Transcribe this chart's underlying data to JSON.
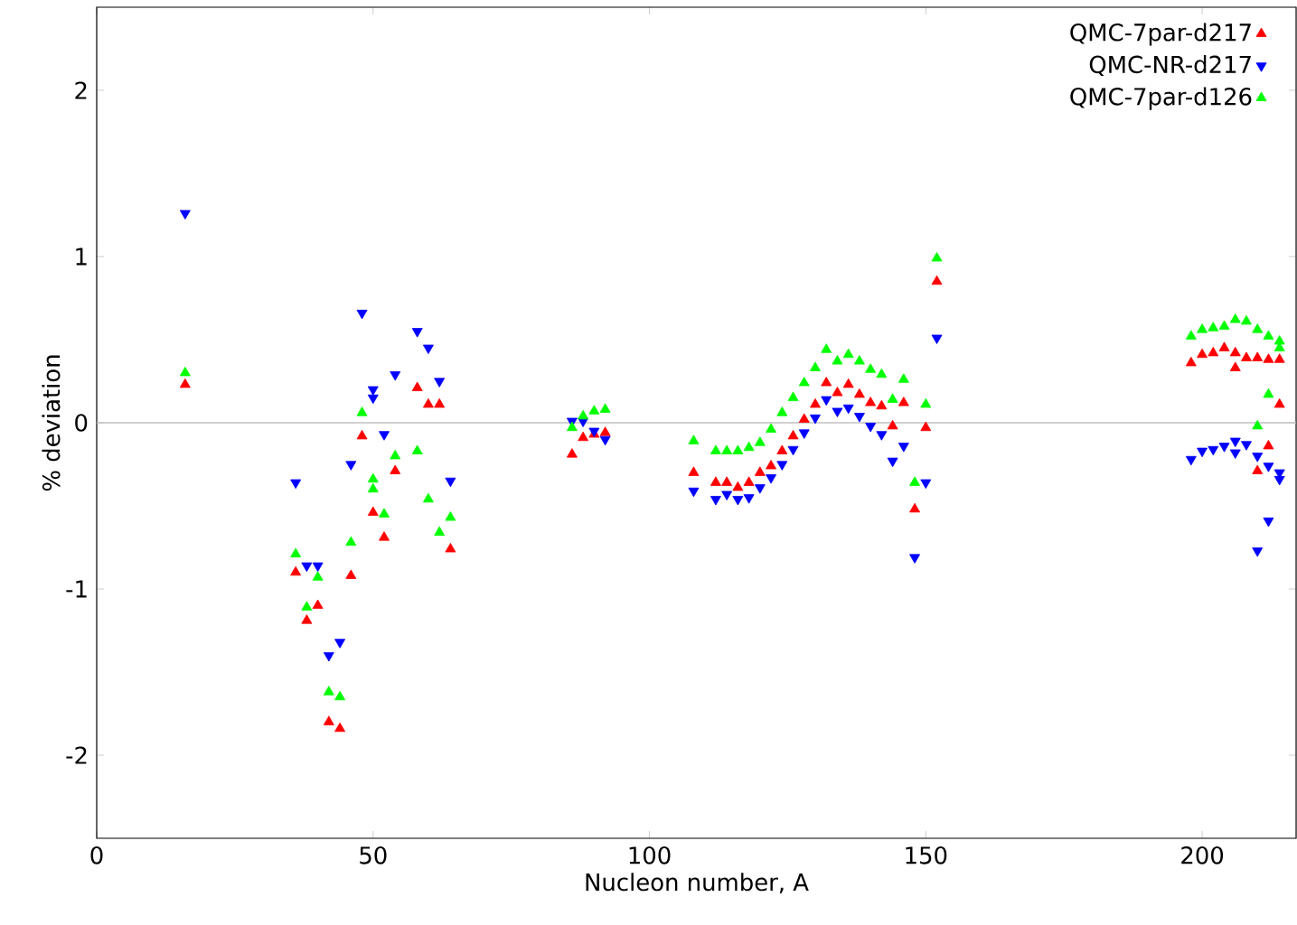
{
  "chart_data": {
    "type": "scatter",
    "xlabel": "Nucleon number, A",
    "ylabel": "% deviation",
    "xlim": [
      0,
      217
    ],
    "ylim": [
      -2.5,
      2.5
    ],
    "xticks": [
      0,
      50,
      100,
      150,
      200
    ],
    "yticks": [
      -2,
      -1,
      0,
      1,
      2
    ],
    "grid": false,
    "legend": "top right",
    "ref_lines": [
      {
        "axis": "y",
        "value": 0,
        "color": "#c0c0c0"
      }
    ],
    "series": [
      {
        "name": "QMC-7par-d217",
        "color": "#ff0000",
        "marker": "triangle",
        "x": [
          16,
          36,
          38,
          40,
          42,
          44,
          46,
          48,
          50,
          52,
          54,
          58,
          60,
          62,
          64,
          86,
          88,
          90,
          92,
          108,
          112,
          114,
          116,
          118,
          120,
          122,
          124,
          126,
          128,
          130,
          132,
          134,
          136,
          138,
          140,
          142,
          144,
          146,
          148,
          150,
          152,
          198,
          200,
          202,
          204,
          206,
          206,
          208,
          210,
          210,
          212,
          212,
          214,
          214
        ],
        "values": [
          0.23,
          -0.9,
          -1.19,
          -1.1,
          -1.8,
          -1.84,
          -0.92,
          -0.08,
          -0.54,
          -0.69,
          -0.29,
          0.21,
          0.11,
          0.11,
          -0.76,
          -0.19,
          -0.09,
          -0.07,
          -0.06,
          -0.3,
          -0.36,
          -0.36,
          -0.39,
          -0.36,
          -0.3,
          -0.26,
          -0.17,
          -0.08,
          0.02,
          0.11,
          0.24,
          0.18,
          0.23,
          0.17,
          0.12,
          0.1,
          -0.02,
          0.12,
          -0.52,
          -0.03,
          0.85,
          0.36,
          0.41,
          0.42,
          0.45,
          0.42,
          0.33,
          0.39,
          0.39,
          -0.29,
          0.38,
          -0.14,
          0.38,
          0.11
        ]
      },
      {
        "name": "QMC-NR-d217",
        "color": "#0000ff",
        "marker": "triangle-down",
        "x": [
          16,
          36,
          38,
          40,
          42,
          44,
          46,
          48,
          50,
          50,
          52,
          54,
          58,
          60,
          62,
          64,
          86,
          88,
          90,
          92,
          108,
          112,
          114,
          116,
          118,
          120,
          122,
          124,
          126,
          128,
          130,
          132,
          134,
          136,
          138,
          140,
          142,
          144,
          146,
          148,
          150,
          152,
          198,
          200,
          202,
          204,
          206,
          206,
          208,
          210,
          210,
          212,
          212,
          214,
          214
        ],
        "values": [
          1.26,
          -0.36,
          -0.86,
          -0.86,
          -1.4,
          -1.32,
          -0.25,
          0.66,
          0.2,
          0.15,
          -0.07,
          0.29,
          0.55,
          0.45,
          0.25,
          -0.35,
          0.01,
          0.01,
          -0.05,
          -0.1,
          -0.41,
          -0.46,
          -0.43,
          -0.46,
          -0.45,
          -0.39,
          -0.33,
          -0.25,
          -0.16,
          -0.06,
          0.03,
          0.14,
          0.07,
          0.09,
          0.04,
          -0.02,
          -0.07,
          -0.23,
          -0.14,
          -0.81,
          -0.36,
          0.51,
          -0.22,
          -0.17,
          -0.16,
          -0.14,
          -0.11,
          -0.18,
          -0.13,
          -0.2,
          -0.77,
          -0.26,
          -0.59,
          -0.3,
          -0.34
        ]
      },
      {
        "name": "QMC-7par-d126",
        "color": "#00ff00",
        "marker": "triangle",
        "x": [
          16,
          36,
          38,
          40,
          42,
          44,
          46,
          48,
          50,
          50,
          52,
          54,
          58,
          60,
          62,
          64,
          86,
          88,
          90,
          92,
          108,
          112,
          114,
          116,
          118,
          120,
          122,
          124,
          126,
          128,
          130,
          132,
          134,
          136,
          138,
          140,
          142,
          144,
          146,
          148,
          150,
          152,
          198,
          200,
          202,
          204,
          206,
          208,
          210,
          210,
          212,
          212,
          214,
          214
        ],
        "values": [
          0.3,
          -0.79,
          -1.11,
          -0.93,
          -1.62,
          -1.65,
          -0.72,
          0.06,
          -0.34,
          -0.4,
          -0.55,
          -0.2,
          -0.17,
          -0.46,
          -0.66,
          -0.57,
          -0.03,
          0.04,
          0.07,
          0.08,
          -0.11,
          -0.17,
          -0.17,
          -0.17,
          -0.15,
          -0.12,
          -0.04,
          0.06,
          0.15,
          0.24,
          0.33,
          0.44,
          0.37,
          0.41,
          0.37,
          0.32,
          0.29,
          0.14,
          0.26,
          -0.36,
          0.11,
          0.99,
          0.52,
          0.56,
          0.57,
          0.58,
          0.62,
          0.61,
          0.56,
          -0.02,
          0.52,
          0.17,
          0.49,
          0.45
        ]
      }
    ]
  }
}
